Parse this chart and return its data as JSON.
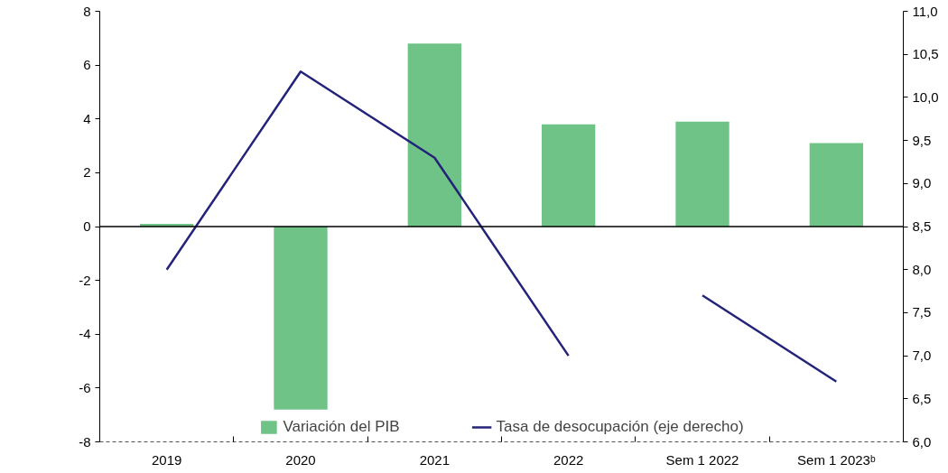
{
  "chart_data": {
    "type": "bar",
    "categories": [
      "2019",
      "2020",
      "2021",
      "2022",
      "Sem 1 2022",
      "Sem 1 2023ᵇ"
    ],
    "series": [
      {
        "name": "Variación del PIB",
        "color": "#70c387",
        "values": [
          0.1,
          -6.8,
          6.8,
          3.8,
          3.9,
          3.1
        ]
      },
      {
        "name": "Tasa de desocupación (eje derecho)",
        "type": "line",
        "axis": "y2",
        "color": "#23237a",
        "values": [
          8.0,
          10.3,
          9.3,
          7.0,
          null,
          null
        ]
      },
      {
        "type": "line",
        "axis": "y2",
        "color": "#23237a",
        "values": [
          null,
          null,
          null,
          null,
          7.7,
          6.7
        ]
      }
    ],
    "ylim": [
      -8,
      8
    ],
    "yticks": [
      -8,
      -6,
      -4,
      -2,
      0,
      2,
      4,
      6,
      8
    ],
    "y2lim": [
      6,
      11
    ],
    "y2ticks": [
      {
        "value": 6,
        "label": "6,0"
      },
      {
        "value": 6.5,
        "label": "6,5"
      },
      {
        "value": 7,
        "label": "7,0"
      },
      {
        "value": 7.5,
        "label": "7,5"
      },
      {
        "value": 8,
        "label": "8,0"
      },
      {
        "value": 8.5,
        "label": "8,5"
      },
      {
        "value": 9,
        "label": "9,0"
      },
      {
        "value": 9.5,
        "label": "9,5"
      },
      {
        "value": 10,
        "label": "10,0"
      },
      {
        "value": 10.5,
        "label": "10,5"
      },
      {
        "value": 11,
        "label": "11,0"
      }
    ],
    "ref_lines": [
      {
        "axis": "y",
        "value": 0,
        "color": "#000000"
      }
    ],
    "grid": false,
    "legend": "bottom",
    "marker": "none",
    "line_style": "solid"
  }
}
